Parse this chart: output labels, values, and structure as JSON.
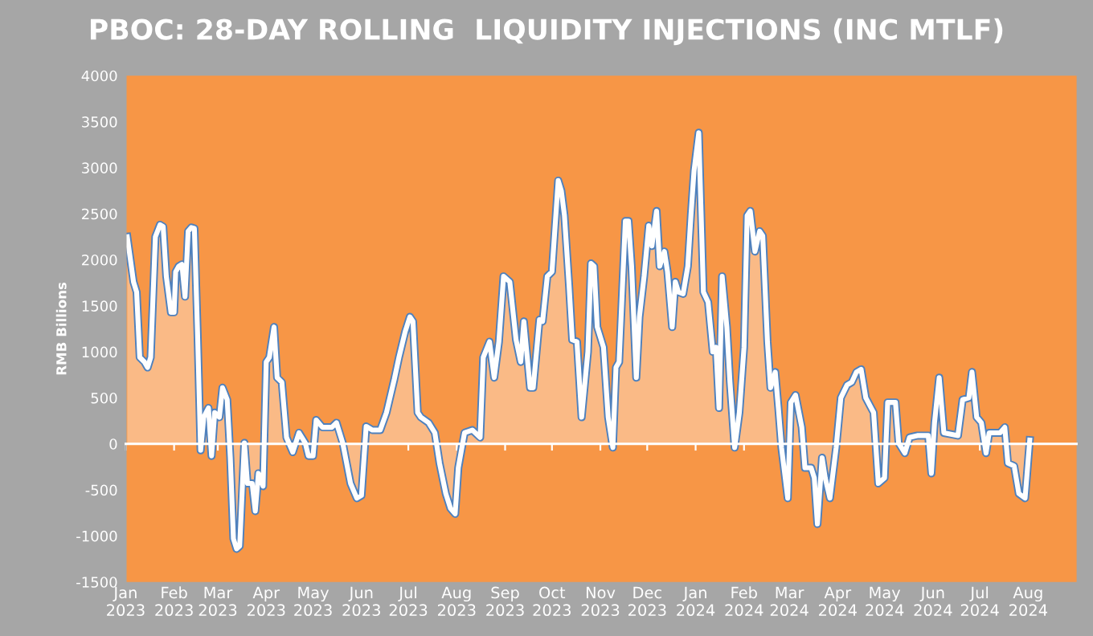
{
  "chart_data": {
    "type": "area",
    "title": "PBOC: 28-DAY ROLLING  LIQUIDITY INJECTIONS (INC MTLF)",
    "ylabel": "RMB Billions",
    "x": [
      "2023-01-02",
      "2023-01-06",
      "2023-01-08",
      "2023-01-10",
      "2023-01-13",
      "2023-01-15",
      "2023-01-17",
      "2023-01-20",
      "2023-01-23",
      "2023-01-25",
      "2023-01-27",
      "2023-01-30",
      "2023-02-01",
      "2023-02-02",
      "2023-02-04",
      "2023-02-06",
      "2023-02-08",
      "2023-02-10",
      "2023-02-12",
      "2023-02-14",
      "2023-02-16",
      "2023-02-18",
      "2023-02-20",
      "2023-02-23",
      "2023-02-25",
      "2023-02-27",
      "2023-03-02",
      "2023-03-04",
      "2023-03-07",
      "2023-03-09",
      "2023-03-11",
      "2023-03-13",
      "2023-03-15",
      "2023-03-18",
      "2023-03-20",
      "2023-03-23",
      "2023-03-25",
      "2023-03-27",
      "2023-03-30",
      "2023-04-01",
      "2023-04-03",
      "2023-04-06",
      "2023-04-08",
      "2023-04-11",
      "2023-04-14",
      "2023-04-18",
      "2023-04-22",
      "2023-04-26",
      "2023-04-28",
      "2023-05-01",
      "2023-05-03",
      "2023-05-07",
      "2023-05-13",
      "2023-05-16",
      "2023-05-20",
      "2023-05-25",
      "2023-05-29",
      "2023-06-01",
      "2023-06-04",
      "2023-06-08",
      "2023-06-13",
      "2023-06-17",
      "2023-06-22",
      "2023-06-25",
      "2023-06-29",
      "2023-07-02",
      "2023-07-04",
      "2023-07-07",
      "2023-07-09",
      "2023-07-14",
      "2023-07-18",
      "2023-07-21",
      "2023-07-25",
      "2023-07-28",
      "2023-07-31",
      "2023-08-02",
      "2023-08-06",
      "2023-08-11",
      "2023-08-16",
      "2023-08-18",
      "2023-08-22",
      "2023-08-25",
      "2023-08-28",
      "2023-08-31",
      "2023-09-04",
      "2023-09-08",
      "2023-09-11",
      "2023-09-13",
      "2023-09-17",
      "2023-09-19",
      "2023-09-23",
      "2023-09-25",
      "2023-09-28",
      "2023-10-01",
      "2023-10-05",
      "2023-10-07",
      "2023-10-09",
      "2023-10-12",
      "2023-10-14",
      "2023-10-17",
      "2023-10-20",
      "2023-10-24",
      "2023-10-26",
      "2023-10-28",
      "2023-10-30",
      "2023-11-03",
      "2023-11-06",
      "2023-11-09",
      "2023-11-11",
      "2023-11-13",
      "2023-11-17",
      "2023-11-19",
      "2023-11-21",
      "2023-11-24",
      "2023-11-26",
      "2023-11-29",
      "2023-12-02",
      "2023-12-04",
      "2023-12-07",
      "2023-12-09",
      "2023-12-12",
      "2023-12-14",
      "2023-12-17",
      "2023-12-19",
      "2023-12-21",
      "2023-12-24",
      "2023-12-27",
      "2023-12-29",
      "2023-12-31",
      "2024-01-03",
      "2024-01-06",
      "2024-01-09",
      "2024-01-12",
      "2024-01-14",
      "2024-01-16",
      "2024-01-18",
      "2024-01-21",
      "2024-01-23",
      "2024-01-26",
      "2024-01-29",
      "2024-02-01",
      "2024-02-03",
      "2024-02-05",
      "2024-02-08",
      "2024-02-11",
      "2024-02-13",
      "2024-02-16",
      "2024-02-18",
      "2024-02-21",
      "2024-02-23",
      "2024-02-25",
      "2024-02-29",
      "2024-03-02",
      "2024-03-05",
      "2024-03-09",
      "2024-03-11",
      "2024-03-15",
      "2024-03-17",
      "2024-03-19",
      "2024-03-22",
      "2024-03-24",
      "2024-03-27",
      "2024-03-31",
      "2024-04-03",
      "2024-04-07",
      "2024-04-10",
      "2024-04-13",
      "2024-04-16",
      "2024-04-19",
      "2024-04-24",
      "2024-04-27",
      "2024-05-01",
      "2024-05-03",
      "2024-05-08",
      "2024-05-10",
      "2024-05-14",
      "2024-05-17",
      "2024-05-22",
      "2024-05-29",
      "2024-05-31",
      "2024-06-02",
      "2024-06-05",
      "2024-06-08",
      "2024-06-17",
      "2024-06-20",
      "2024-06-24",
      "2024-06-26",
      "2024-06-29",
      "2024-07-02",
      "2024-07-05",
      "2024-07-07",
      "2024-07-14",
      "2024-07-17",
      "2024-07-19",
      "2024-07-23",
      "2024-07-26",
      "2024-07-30",
      "2024-08-02"
    ],
    "series": [
      {
        "color": "#ffffff",
        "values": [
          2250,
          1760,
          1650,
          940,
          890,
          830,
          940,
          2250,
          2380,
          2360,
          1820,
          1430,
          1430,
          1870,
          1930,
          1950,
          1600,
          2310,
          2350,
          2340,
          1220,
          -70,
          290,
          390,
          -130,
          340,
          290,
          610,
          480,
          -150,
          -1030,
          -1140,
          -1110,
          10,
          -430,
          -430,
          -730,
          -320,
          -460,
          890,
          940,
          1270,
          720,
          670,
          70,
          -90,
          120,
          10,
          -130,
          -130,
          260,
          180,
          180,
          230,
          10,
          -430,
          -590,
          -560,
          190,
          150,
          150,
          340,
          700,
          940,
          1220,
          1380,
          1330,
          340,
          290,
          230,
          120,
          -210,
          -540,
          -700,
          -760,
          -260,
          120,
          150,
          70,
          940,
          1110,
          720,
          1110,
          1820,
          1760,
          1130,
          890,
          1330,
          610,
          610,
          1350,
          1330,
          1820,
          1870,
          2860,
          2750,
          2480,
          1710,
          1130,
          1110,
          290,
          1000,
          1960,
          1930,
          1270,
          1050,
          290,
          -40,
          830,
          890,
          2420,
          2420,
          1930,
          720,
          1380,
          1820,
          2370,
          2150,
          2530,
          1930,
          2090,
          1870,
          1270,
          1760,
          1650,
          1630,
          1930,
          2480,
          2970,
          3380,
          1650,
          1540,
          1000,
          1050,
          390,
          1820,
          1270,
          670,
          -40,
          340,
          1050,
          2480,
          2530,
          2090,
          2310,
          2260,
          1110,
          610,
          780,
          390,
          -40,
          -590,
          450,
          530,
          180,
          -260,
          -260,
          -370,
          -870,
          -150,
          -370,
          -590,
          -40,
          500,
          640,
          670,
          780,
          810,
          500,
          340,
          -430,
          -370,
          450,
          450,
          10,
          -100,
          70,
          90,
          90,
          -320,
          230,
          720,
          120,
          90,
          480,
          500,
          780,
          290,
          230,
          -100,
          120,
          120,
          180,
          -210,
          -240,
          -540,
          -590,
          40
        ]
      }
    ],
    "xlim": [
      "2023-01-01",
      "2024-09-01"
    ],
    "xticks": [
      {
        "value": "2023-01-01",
        "label": "Jan\n2023"
      },
      {
        "value": "2023-02-01",
        "label": "Feb\n2023"
      },
      {
        "value": "2023-03-01",
        "label": "Mar\n2023"
      },
      {
        "value": "2023-04-01",
        "label": "Apr\n2023"
      },
      {
        "value": "2023-05-01",
        "label": "May\n2023"
      },
      {
        "value": "2023-06-01",
        "label": "Jun\n2023"
      },
      {
        "value": "2023-07-01",
        "label": "Jul\n2023"
      },
      {
        "value": "2023-08-01",
        "label": "Aug\n2023"
      },
      {
        "value": "2023-09-01",
        "label": "Sep\n2023"
      },
      {
        "value": "2023-10-01",
        "label": "Oct\n2023"
      },
      {
        "value": "2023-11-01",
        "label": "Nov\n2023"
      },
      {
        "value": "2023-12-01",
        "label": "Dec\n2023"
      },
      {
        "value": "2024-01-01",
        "label": "Jan\n2024"
      },
      {
        "value": "2024-02-01",
        "label": "Feb\n2024"
      },
      {
        "value": "2024-03-01",
        "label": "Mar\n2024"
      },
      {
        "value": "2024-04-01",
        "label": "Apr\n2024"
      },
      {
        "value": "2024-05-01",
        "label": "May\n2024"
      },
      {
        "value": "2024-06-01",
        "label": "Jun\n2024"
      },
      {
        "value": "2024-07-01",
        "label": "Jul\n2024"
      },
      {
        "value": "2024-08-01",
        "label": "Aug\n2024"
      }
    ],
    "ylim": [
      -1500,
      4000
    ],
    "yticks": [
      -1500,
      -1000,
      -500,
      0,
      500,
      1000,
      1500,
      2000,
      2500,
      3000,
      3500,
      4000
    ]
  }
}
